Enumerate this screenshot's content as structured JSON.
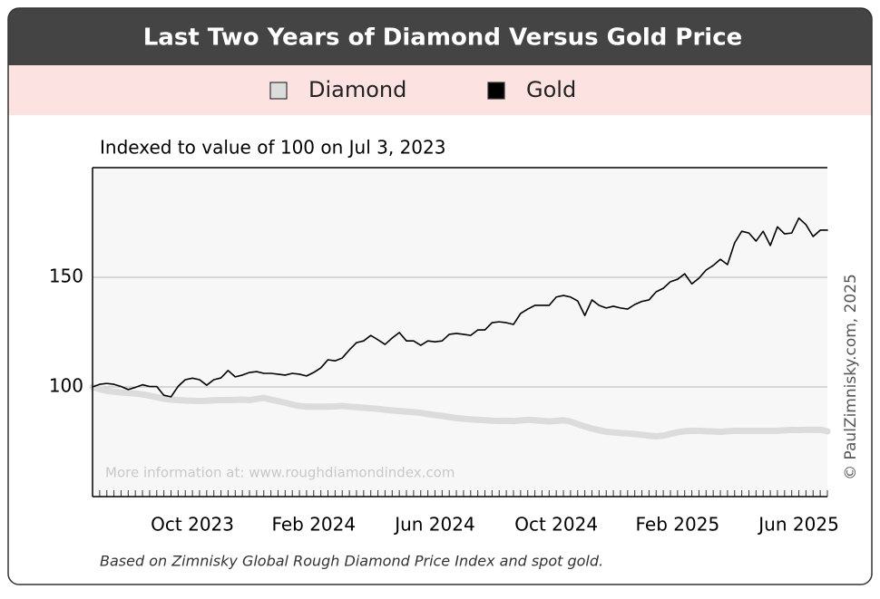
{
  "chart_data": {
    "type": "line",
    "title": "Last Two Years of Diamond Versus Gold Price",
    "subtitle": "Indexed to value of 100 on Jul 3, 2023",
    "annotation": "More information at: www.roughdiamondindex.com",
    "credit": "© PaulZimnisky.com, 2025",
    "footnote": "Based on Zimnisky Global Rough Diamond Price Index and spot gold.",
    "categories": [
      null,
      null,
      null,
      null,
      null,
      null,
      null,
      null,
      null,
      null,
      null,
      null,
      null,
      null,
      "Oct 2023",
      null,
      null,
      null,
      null,
      null,
      null,
      null,
      null,
      null,
      null,
      null,
      null,
      null,
      null,
      null,
      null,
      "Feb 2024",
      null,
      null,
      null,
      null,
      null,
      null,
      null,
      null,
      null,
      null,
      null,
      null,
      null,
      null,
      null,
      null,
      "Jun 2024",
      null,
      null,
      null,
      null,
      null,
      null,
      null,
      null,
      null,
      null,
      null,
      null,
      null,
      null,
      null,
      null,
      "Oct 2024",
      null,
      null,
      null,
      null,
      null,
      null,
      null,
      null,
      null,
      null,
      null,
      null,
      null,
      null,
      null,
      null,
      "Feb 2025",
      null,
      null,
      null,
      null,
      null,
      null,
      null,
      null,
      null,
      null,
      null,
      null,
      null,
      null,
      null,
      null,
      "Jun 2025",
      null,
      null,
      null,
      null
    ],
    "series": [
      {
        "name": "Diamond",
        "color": "#dcdcdc",
        "values": [
          100,
          99,
          98.2,
          97.8,
          97.5,
          97.2,
          97,
          96.6,
          96,
          95.3,
          94.6,
          94.2,
          94,
          93.8,
          93.7,
          93.6,
          93.7,
          93.9,
          94,
          94,
          94.1,
          94.2,
          94,
          94.5,
          95,
          94.2,
          93.5,
          92.8,
          92,
          91.3,
          91,
          91,
          91,
          91,
          91.1,
          91.3,
          91,
          90.8,
          90.5,
          90.3,
          90,
          89.6,
          89.3,
          89,
          88.8,
          88.5,
          88.2,
          87.6,
          87.2,
          86.8,
          86.3,
          85.8,
          85.5,
          85.2,
          85,
          84.8,
          84.6,
          84.5,
          84.6,
          84.4,
          84.7,
          85,
          84.8,
          84.5,
          84.3,
          84.5,
          84.8,
          84.2,
          83,
          82,
          81,
          80.3,
          79.6,
          79.3,
          79,
          78.8,
          78.5,
          78.2,
          77.8,
          77.5,
          77.8,
          78.6,
          79.3,
          79.8,
          80,
          80,
          79.8,
          79.7,
          79.5,
          79.8,
          80,
          80,
          80,
          80,
          80,
          80,
          80,
          80.2,
          80.4,
          80.3,
          80.5,
          80.4,
          80.5,
          79.8
        ]
      },
      {
        "name": "Gold",
        "color": "#000000",
        "values": [
          100,
          101.2,
          101.6,
          101.2,
          100.2,
          98.8,
          99.8,
          101,
          100.2,
          100.2,
          96.2,
          95.5,
          100.3,
          103.3,
          104,
          103.3,
          100.8,
          103.3,
          104.1,
          107.5,
          104.6,
          105.4,
          106.6,
          107,
          106.2,
          106.2,
          105.8,
          105.4,
          106.2,
          105.8,
          105,
          106.6,
          108.7,
          112.4,
          111.9,
          113.2,
          116.9,
          120.2,
          121,
          123.5,
          121.5,
          119.4,
          122.3,
          124.8,
          121,
          121,
          119,
          121,
          120.6,
          121,
          124,
          124.4,
          124,
          123.5,
          126,
          126,
          129.3,
          129.7,
          129.3,
          128.5,
          133.5,
          135.5,
          137.2,
          137.2,
          137.2,
          141,
          141.7,
          141,
          139.2,
          132.6,
          139.7,
          137.2,
          136,
          136.8,
          136,
          135.5,
          137.6,
          139,
          139.7,
          143.4,
          145,
          148,
          149.1,
          151.6,
          147,
          149.6,
          153.3,
          155.4,
          158.2,
          155.8,
          165.7,
          171,
          170.2,
          166.5,
          171,
          164.5,
          173,
          169.8,
          170.2,
          177,
          174,
          168.6,
          171.5,
          171.5
        ]
      }
    ],
    "ylim": [
      50,
      200
    ],
    "yticks": [
      100,
      150
    ],
    "grid": true
  }
}
